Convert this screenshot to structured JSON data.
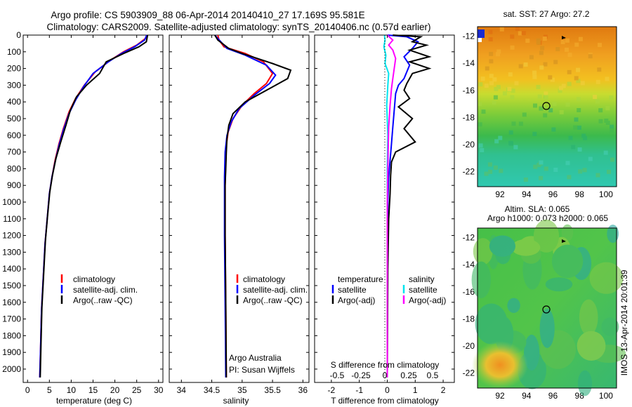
{
  "title_line1": "Argo profile: CS 5903909_88 06-Apr-2014 20140410_27 17.169S 95.581E",
  "title_line2": "Climatology: CARS2009. Satellite-adjusted climatology: synTS_20140406.nc (0.57d earlier)",
  "side_label": "IMOS 13-Apr-2014 20:01:39",
  "colors": {
    "climatology": "#ff0000",
    "satellite": "#0000ff",
    "argo": "#000000",
    "sat_s": "#00e5ee",
    "argo_s": "#ff00ff"
  },
  "chart_data": [
    {
      "type": "line",
      "id": "temperature",
      "xlabel": "temperature (deg C)",
      "xlim": [
        -1,
        31
      ],
      "ylim": [
        2080,
        0
      ],
      "xticks": [
        "0",
        "5",
        "10",
        "15",
        "20",
        "25",
        "30"
      ],
      "yticks": [
        "0",
        "100",
        "200",
        "300",
        "400",
        "500",
        "600",
        "700",
        "800",
        "900",
        "1000",
        "1100",
        "1200",
        "1300",
        "1400",
        "1500",
        "1600",
        "1700",
        "1800",
        "1900",
        "2000"
      ],
      "legend": [
        "climatology",
        "satellite-adj. clim.",
        "Argo(..raw -QC)"
      ],
      "series": [
        {
          "name": "climatology",
          "color": "#ff0000",
          "points": [
            [
              27.3,
              0
            ],
            [
              27,
              20
            ],
            [
              25,
              60
            ],
            [
              22,
              100
            ],
            [
              19,
              150
            ],
            [
              15.5,
              220
            ],
            [
              13,
              300
            ],
            [
              11,
              380
            ],
            [
              9.5,
              460
            ],
            [
              8.2,
              560
            ],
            [
              7.2,
              650
            ],
            [
              6.3,
              750
            ],
            [
              5.6,
              850
            ],
            [
              5,
              950
            ],
            [
              4.5,
              1100
            ],
            [
              4,
              1250
            ],
            [
              3.6,
              1450
            ],
            [
              3.2,
              1650
            ],
            [
              3,
              1850
            ],
            [
              2.8,
              2050
            ]
          ]
        },
        {
          "name": "satellite-adj. clim.",
          "color": "#0000ff",
          "points": [
            [
              27.3,
              0
            ],
            [
              26.8,
              30
            ],
            [
              24.5,
              70
            ],
            [
              21.5,
              110
            ],
            [
              18.5,
              160
            ],
            [
              15,
              230
            ],
            [
              12.8,
              310
            ],
            [
              11,
              390
            ],
            [
              9.5,
              470
            ],
            [
              8.2,
              570
            ],
            [
              7.2,
              660
            ],
            [
              6.3,
              760
            ],
            [
              5.6,
              850
            ],
            [
              5,
              950
            ],
            [
              4.5,
              1100
            ],
            [
              4,
              1250
            ],
            [
              3.6,
              1450
            ],
            [
              3.2,
              1650
            ],
            [
              3,
              1850
            ],
            [
              2.8,
              2050
            ]
          ]
        },
        {
          "name": "Argo",
          "color": "#000000",
          "points": [
            [
              27.5,
              0
            ],
            [
              27.2,
              40
            ],
            [
              25.5,
              70
            ],
            [
              22,
              110
            ],
            [
              18,
              160
            ],
            [
              16.5,
              230
            ],
            [
              13.5,
              300
            ],
            [
              11.2,
              370
            ],
            [
              9.8,
              450
            ],
            [
              8.8,
              540
            ],
            [
              7.6,
              640
            ],
            [
              6.5,
              740
            ],
            [
              5.7,
              840
            ],
            [
              5.1,
              940
            ],
            [
              4.6,
              1080
            ],
            [
              4.1,
              1230
            ],
            [
              3.7,
              1430
            ],
            [
              3.3,
              1630
            ],
            [
              3.1,
              1830
            ],
            [
              2.9,
              2050
            ]
          ]
        }
      ]
    },
    {
      "type": "line",
      "id": "salinity",
      "xlabel": "salinity",
      "xlim": [
        33.8,
        36.1
      ],
      "ylim": [
        2080,
        0
      ],
      "xticks": [
        "34",
        "34.5",
        "35",
        "35.5",
        "36"
      ],
      "legend": [
        "climatology",
        "satellite-adj. clim.",
        "Argo(..raw -QC)"
      ],
      "annotation": [
        "Argo Australia",
        "PI: Susan Wijffels"
      ],
      "series": [
        {
          "name": "climatology",
          "color": "#ff0000",
          "points": [
            [
              34.6,
              0
            ],
            [
              34.62,
              30
            ],
            [
              34.7,
              70
            ],
            [
              35.05,
              110
            ],
            [
              35.35,
              160
            ],
            [
              35.5,
              230
            ],
            [
              35.4,
              290
            ],
            [
              35.2,
              350
            ],
            [
              35.0,
              420
            ],
            [
              34.85,
              500
            ],
            [
              34.77,
              580
            ],
            [
              34.74,
              660
            ],
            [
              34.73,
              760
            ],
            [
              34.72,
              900
            ],
            [
              34.72,
              1200
            ],
            [
              34.73,
              1600
            ],
            [
              34.74,
              2050
            ]
          ]
        },
        {
          "name": "satellite-adj. clim.",
          "color": "#0000ff",
          "points": [
            [
              34.55,
              0
            ],
            [
              34.65,
              40
            ],
            [
              34.75,
              80
            ],
            [
              35.05,
              120
            ],
            [
              35.4,
              180
            ],
            [
              35.55,
              240
            ],
            [
              35.45,
              290
            ],
            [
              35.2,
              360
            ],
            [
              34.95,
              440
            ],
            [
              34.82,
              520
            ],
            [
              34.75,
              600
            ],
            [
              34.72,
              700
            ],
            [
              34.71,
              850
            ],
            [
              34.71,
              1200
            ],
            [
              34.72,
              1600
            ],
            [
              34.73,
              2050
            ]
          ]
        },
        {
          "name": "Argo",
          "color": "#000000",
          "points": [
            [
              34.55,
              0
            ],
            [
              34.6,
              30
            ],
            [
              34.78,
              80
            ],
            [
              35.0,
              110
            ],
            [
              35.5,
              170
            ],
            [
              35.8,
              210
            ],
            [
              35.75,
              260
            ],
            [
              35.45,
              320
            ],
            [
              35.05,
              400
            ],
            [
              34.85,
              470
            ],
            [
              34.78,
              540
            ],
            [
              34.75,
              620
            ],
            [
              34.74,
              700
            ],
            [
              34.73,
              800
            ],
            [
              34.72,
              900
            ],
            [
              34.72,
              1200
            ],
            [
              34.73,
              1600
            ],
            [
              34.74,
              2050
            ]
          ]
        }
      ]
    },
    {
      "type": "line",
      "id": "difference",
      "xlabel": "T difference from climatology",
      "xlabel_top": "S difference from climatology",
      "xlim": [
        -2.6,
        2.4
      ],
      "ylim": [
        2080,
        0
      ],
      "xticks": [
        "-2",
        "-1",
        "0",
        "1",
        "2"
      ],
      "s_ticks": [
        "-0.5",
        "-0.25",
        "0",
        "0.25",
        "0.5"
      ],
      "legend_t": [
        "temperature",
        "satellite",
        "Argo(-adj)"
      ],
      "legend_s": [
        "salinity",
        "satellite",
        "Argo(-adj)"
      ],
      "series": [
        {
          "name": "T satellite",
          "color": "#0000ff",
          "points": [
            [
              0,
              0
            ],
            [
              0.7,
              10
            ],
            [
              1.1,
              40
            ],
            [
              0.9,
              80
            ],
            [
              0.6,
              130
            ],
            [
              0.8,
              180
            ],
            [
              0.6,
              260
            ],
            [
              0.4,
              300
            ],
            [
              0.3,
              350
            ],
            [
              0.25,
              450
            ],
            [
              0.2,
              550
            ],
            [
              0.15,
              650
            ],
            [
              0.1,
              750
            ],
            [
              0.05,
              850
            ],
            [
              0.02,
              1000
            ],
            [
              0,
              1400
            ],
            [
              0,
              2050
            ]
          ]
        },
        {
          "name": "T Argo",
          "color": "#000000",
          "points": [
            [
              0.2,
              0
            ],
            [
              1.2,
              10
            ],
            [
              0.9,
              40
            ],
            [
              1.4,
              60
            ],
            [
              0.8,
              90
            ],
            [
              1.5,
              130
            ],
            [
              0.8,
              160
            ],
            [
              1.5,
              200
            ],
            [
              0.9,
              230
            ],
            [
              0.7,
              290
            ],
            [
              0.6,
              330
            ],
            [
              0.8,
              380
            ],
            [
              0.4,
              430
            ],
            [
              0.9,
              500
            ],
            [
              0.6,
              560
            ],
            [
              1.0,
              640
            ],
            [
              0.3,
              700
            ],
            [
              0.15,
              760
            ],
            [
              0.12,
              840
            ],
            [
              0.1,
              950
            ],
            [
              0.05,
              1100
            ],
            [
              0.02,
              1400
            ],
            [
              0,
              2050
            ]
          ]
        },
        {
          "name": "S satellite",
          "color": "#00e5ee",
          "points": [
            [
              -0.1,
              0
            ],
            [
              -0.08,
              30
            ],
            [
              -0.12,
              70
            ],
            [
              -0.05,
              120
            ],
            [
              -0.08,
              170
            ],
            [
              0.05,
              230
            ],
            [
              0.02,
              300
            ],
            [
              -0.02,
              420
            ],
            [
              0.02,
              600
            ],
            [
              0,
              800
            ],
            [
              0,
              1100
            ],
            [
              0,
              2050
            ]
          ]
        },
        {
          "name": "S Argo",
          "color": "#ff00ff",
          "points": [
            [
              0,
              0
            ],
            [
              0.2,
              30
            ],
            [
              0.05,
              60
            ],
            [
              0.2,
              90
            ],
            [
              0.3,
              140
            ],
            [
              0.25,
              200
            ],
            [
              0.2,
              260
            ],
            [
              0.15,
              320
            ],
            [
              0.1,
              420
            ],
            [
              0.05,
              550
            ],
            [
              0.03,
              700
            ],
            [
              0.02,
              800
            ],
            [
              0.01,
              900
            ],
            [
              0,
              1000
            ],
            [
              0,
              2050
            ]
          ]
        }
      ]
    },
    {
      "type": "heatmap",
      "id": "sst_map",
      "title": "sat. SST: 27 Argo: 27.2",
      "xlim": [
        90.3,
        100.8
      ],
      "ylim": [
        -23.1,
        -11.3
      ],
      "xticks": [
        "92",
        "94",
        "96",
        "98",
        "100"
      ],
      "yticks": [
        "-12",
        "-14",
        "-16",
        "-18",
        "-20",
        "-22"
      ],
      "argo_position": [
        95.58,
        -17.17
      ]
    },
    {
      "type": "heatmap",
      "id": "sla_map",
      "title_line1": "Altim. SLA: 0.065",
      "title_line2": "Argo h1000: 0.073 h2000: 0.065",
      "xlim": [
        90.3,
        100.8
      ],
      "ylim": [
        -23.1,
        -11.3
      ],
      "xticks": [
        "92",
        "94",
        "96",
        "98",
        "100"
      ],
      "yticks": [
        "-12",
        "-14",
        "-16",
        "-18",
        "-20",
        "-22"
      ],
      "argo_position": [
        95.58,
        -17.17
      ]
    }
  ]
}
